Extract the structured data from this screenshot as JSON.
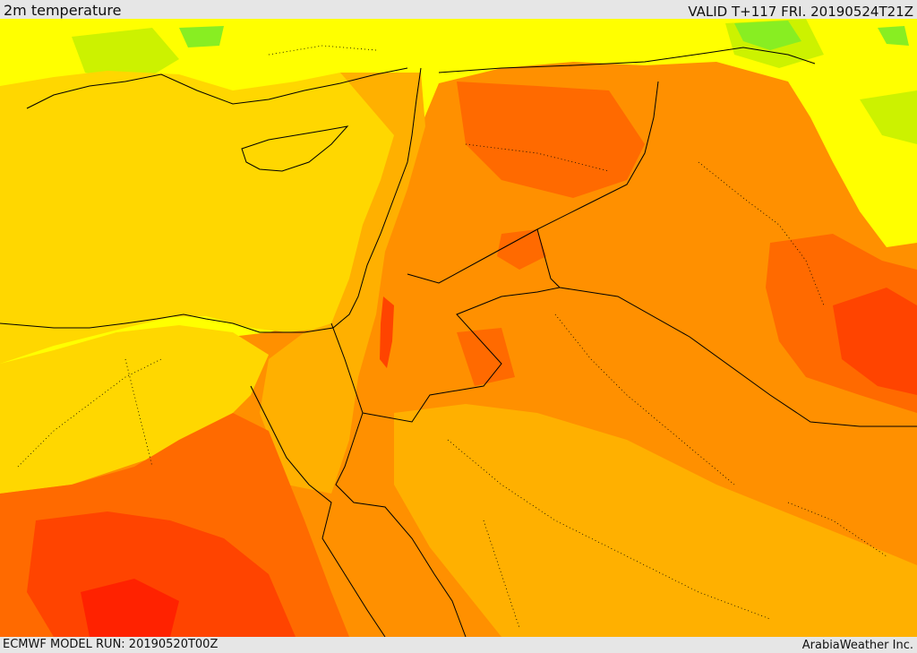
{
  "header": {
    "title": "2m temperature",
    "valid": "VALID T+117 FRI. 20190524T21Z"
  },
  "footer": {
    "model_run": "ECMWF MODEL RUN: 20190520T00Z",
    "credit": "ArabiaWeather Inc."
  },
  "colors": {
    "green": "#88ee22",
    "yellow_green": "#ccf200",
    "yellow": "#ffff00",
    "gold": "#ffd700",
    "amber": "#ffb000",
    "orange": "#ff9000",
    "dark_orange": "#ff6a00",
    "red_orange": "#ff4400",
    "red": "#ff2200",
    "borders": "#000000"
  }
}
